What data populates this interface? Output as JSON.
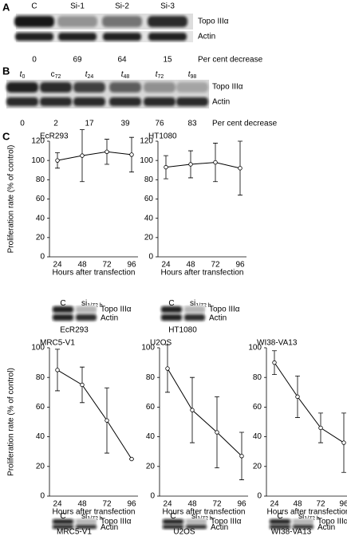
{
  "panel_a": {
    "label": "A",
    "lanes": [
      "C",
      "Si-1",
      "Si-2",
      "Si-3"
    ],
    "bands": [
      "Topo IIIα",
      "Actin"
    ],
    "decrease": [
      0,
      69,
      64,
      15
    ],
    "decrease_label": "Per cent decrease"
  },
  "panel_b": {
    "label": "B",
    "lanes": [
      {
        "text": "t",
        "sub": "0"
      },
      {
        "text": "c",
        "sub": "72"
      },
      {
        "text": "t",
        "sub": "24"
      },
      {
        "text": "t",
        "sub": "48"
      },
      {
        "text": "t",
        "sub": "72"
      },
      {
        "text": "t",
        "sub": "98"
      }
    ],
    "bands": [
      "Topo IIIα",
      "Actin"
    ],
    "decrease": [
      0,
      2,
      17,
      39,
      76,
      83
    ],
    "decrease_label": "Per cent decrease"
  },
  "panel_c": {
    "label": "C"
  },
  "chart_data": [
    {
      "type": "line",
      "title": "EcR293",
      "ylabel": "Proliferation rate (% of control)",
      "xlabel": "Hours after transfection",
      "categories": [
        "24",
        "48",
        "72",
        "96"
      ],
      "ylim": [
        0,
        120
      ],
      "yticks": [
        0,
        20,
        40,
        60,
        80,
        100,
        120
      ],
      "series": [
        {
          "color": "#000000",
          "values": [
            100,
            105,
            109,
            106
          ],
          "errors": [
            8,
            27,
            13,
            18
          ]
        }
      ],
      "blot": {
        "lanes": [
          {
            "text": "C"
          },
          {
            "text": "si",
            "sub": "1/72 h"
          }
        ],
        "bands": [
          "Topo IIIα",
          "Actin"
        ]
      }
    },
    {
      "type": "line",
      "title": "HT1080",
      "xlabel": "Hours after transfection",
      "categories": [
        "24",
        "48",
        "72",
        "96"
      ],
      "ylim": [
        0,
        120
      ],
      "yticks": [
        0,
        20,
        40,
        60,
        80,
        100,
        120
      ],
      "series": [
        {
          "color": "#000000",
          "values": [
            93,
            96,
            98,
            92
          ],
          "errors": [
            12,
            14,
            20,
            28
          ]
        }
      ],
      "blot": {
        "lanes": [
          {
            "text": "C"
          },
          {
            "text": "si",
            "sub": "1/72 h"
          }
        ],
        "bands": [
          "Topo IIIα",
          "Actin"
        ]
      }
    },
    {
      "type": "line",
      "title": "MRC5-V1",
      "ylabel": "Proliferation rate (% of control)",
      "xlabel": "Hours after transfection",
      "categories": [
        "24",
        "48",
        "72",
        "96"
      ],
      "ylim": [
        0,
        100
      ],
      "yticks": [
        0,
        20,
        40,
        60,
        80,
        100
      ],
      "series": [
        {
          "color": "#000000",
          "values": [
            85,
            75,
            51,
            25
          ],
          "errors": [
            14,
            12,
            22,
            0
          ]
        }
      ],
      "blot": {
        "lanes": [
          {
            "text": "C"
          },
          {
            "text": "si",
            "sub": "1/72 h"
          }
        ],
        "bands": [
          "Topo IIIα",
          "Actin"
        ]
      }
    },
    {
      "type": "line",
      "title": "U2OS",
      "xlabel": "Hours after transfection",
      "categories": [
        "24",
        "48",
        "72",
        "96"
      ],
      "ylim": [
        0,
        100
      ],
      "yticks": [
        0,
        20,
        40,
        60,
        80,
        100
      ],
      "series": [
        {
          "color": "#000000",
          "values": [
            86,
            58,
            43,
            27
          ],
          "errors": [
            16,
            22,
            24,
            16
          ]
        }
      ],
      "blot": {
        "lanes": [
          {
            "text": "C"
          },
          {
            "text": "si",
            "sub": "1/72 h"
          }
        ],
        "bands": [
          "Topo IIIα",
          "Actin"
        ]
      }
    },
    {
      "type": "line",
      "title": "WI38-VA13",
      "xlabel": "Hours after transfection",
      "categories": [
        "24",
        "48",
        "72",
        "96"
      ],
      "ylim": [
        0,
        100
      ],
      "yticks": [
        0,
        20,
        40,
        60,
        80,
        100
      ],
      "series": [
        {
          "color": "#000000",
          "values": [
            90,
            67,
            46,
            36
          ],
          "errors": [
            8,
            14,
            10,
            20
          ]
        }
      ],
      "blot": {
        "lanes": [
          {
            "text": "C"
          },
          {
            "text": "si",
            "sub": "1/72 h"
          }
        ],
        "bands": [
          "Topo IIIα",
          "Actin"
        ]
      }
    }
  ]
}
